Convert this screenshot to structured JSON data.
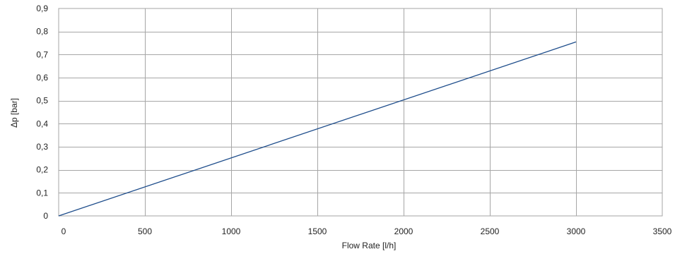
{
  "chart_data": {
    "type": "line",
    "title": "",
    "xlabel": "Flow Rate [l/h]",
    "ylabel": "Δp [bar]",
    "xlim": [
      0,
      3500
    ],
    "ylim": [
      0,
      0.9
    ],
    "xticks": [
      0,
      500,
      1000,
      1500,
      2000,
      2500,
      3000,
      3500
    ],
    "xtick_labels": [
      "0",
      "500",
      "1000",
      "1500",
      "2000",
      "2500",
      "3000",
      "3500"
    ],
    "yticks": [
      0,
      0.1,
      0.2,
      0.3,
      0.4,
      0.5,
      0.6,
      0.7,
      0.8,
      0.9
    ],
    "ytick_labels": [
      "0",
      "0,1",
      "0,2",
      "0,3",
      "0,4",
      "0,5",
      "0,6",
      "0,7",
      "0,8",
      "0,9"
    ],
    "grid": true,
    "legend": "none",
    "series": [
      {
        "color": "#1f4e8c",
        "x": [
          0,
          3000
        ],
        "y": [
          0,
          0.755
        ]
      }
    ],
    "colors": {
      "grid": "#a6a6a6",
      "frame": "#a6a6a6",
      "line": "#1f4e8c"
    }
  }
}
